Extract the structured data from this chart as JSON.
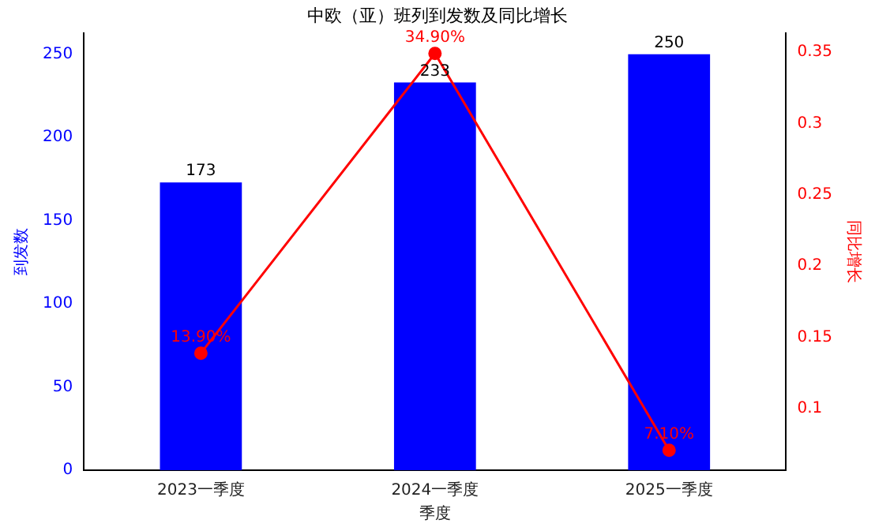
{
  "chart_data": {
    "type": "bar",
    "title": "中欧（亚）班列到发数及同比增长",
    "xlabel": "季度",
    "ylabel": "到发数",
    "y2label": "同比增长",
    "categories": [
      "2023一季度",
      "2024一季度",
      "2025一季度"
    ],
    "series": [
      {
        "color": "#0000ff",
        "values": [
          173,
          233,
          250
        ],
        "value_labels": [
          "173",
          "233",
          "250"
        ]
      },
      {
        "type": "line",
        "axis": "y2",
        "color": "#ff0000",
        "marker": "circle",
        "values": [
          0.139,
          0.349,
          0.071
        ],
        "value_labels": [
          "13.90%",
          "34.90%",
          "7.10%"
        ]
      }
    ],
    "ylim": [
      0,
      262.5
    ],
    "yticks": [
      0,
      50,
      100,
      150,
      200,
      250
    ],
    "y2lim": [
      0.057,
      0.363
    ],
    "y2ticks": [
      0.1,
      0.15,
      0.2,
      0.25,
      0.3,
      0.35
    ],
    "grid": false,
    "legend": false
  }
}
